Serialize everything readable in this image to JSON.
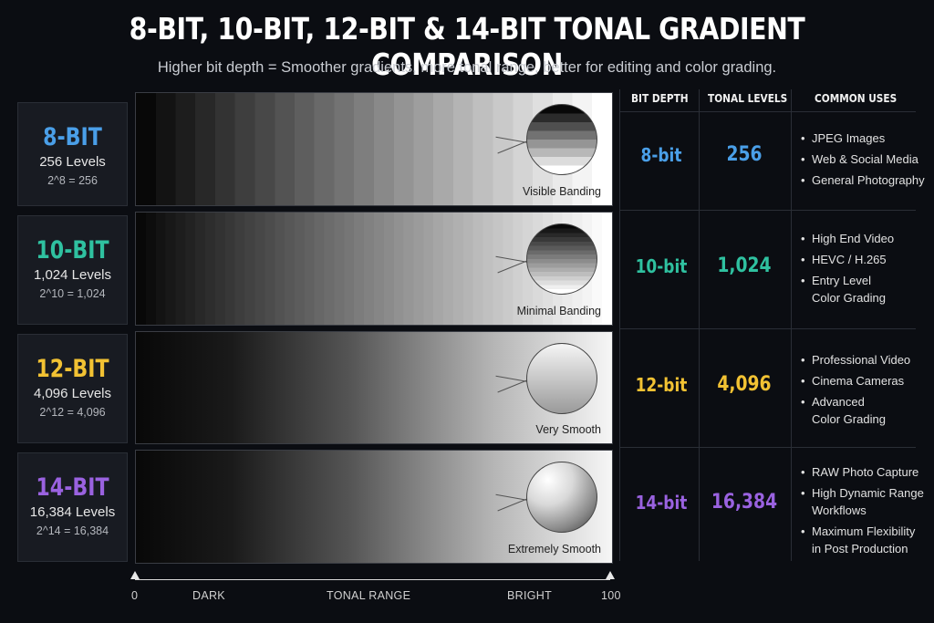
{
  "title": "8-BIT, 10-BIT, 12-BIT & 14-BIT TONAL GRADIENT COMPARISON",
  "subtitle": "Higher bit depth = Smoother gradients, more tonal range, better for editing and color grading.",
  "table_headers": {
    "bit_depth": "BIT DEPTH",
    "tonal_levels": "TONAL LEVELS",
    "common_uses": "COMMON USES"
  },
  "rows": [
    {
      "label": "8-BIT",
      "levels_text": "256 Levels",
      "formula": "2^8 = 256",
      "caption": "Visible Banding",
      "bit_depth": "8-bit",
      "tonal_levels": "256",
      "color": "#4a9fe8",
      "bands": 24,
      "uses": [
        "JPEG Images",
        "Web & Social Media",
        "General Photography"
      ]
    },
    {
      "label": "10-BIT",
      "levels_text": "1,024 Levels",
      "formula": "2^10 = 1,024",
      "caption": "Minimal Banding",
      "bit_depth": "10-bit",
      "tonal_levels": "1,024",
      "color": "#2fc1a0",
      "bands": 48,
      "uses": [
        "High End Video",
        "HEVC / H.265",
        "Entry Level\nColor Grading"
      ]
    },
    {
      "label": "12-BIT",
      "levels_text": "4,096 Levels",
      "formula": "2^12 = 4,096",
      "caption": "Very Smooth",
      "bit_depth": "12-bit",
      "tonal_levels": "4,096",
      "color": "#f2c233",
      "bands": 0,
      "uses": [
        "Professional Video",
        "Cinema Cameras",
        "Advanced\nColor Grading"
      ]
    },
    {
      "label": "14-BIT",
      "levels_text": "16,384 Levels",
      "formula": "2^14 = 16,384",
      "caption": "Extremely Smooth",
      "bit_depth": "14-bit",
      "tonal_levels": "16,384",
      "color": "#9a62e0",
      "bands": 0,
      "uses": [
        "RAW Photo Capture",
        "High Dynamic Range\nWorkflows",
        "Maximum Flexibility\nin Post Production"
      ]
    }
  ],
  "axis": {
    "min": "0",
    "max": "100",
    "dark": "DARK",
    "center": "TONAL RANGE",
    "bright": "BRIGHT"
  }
}
